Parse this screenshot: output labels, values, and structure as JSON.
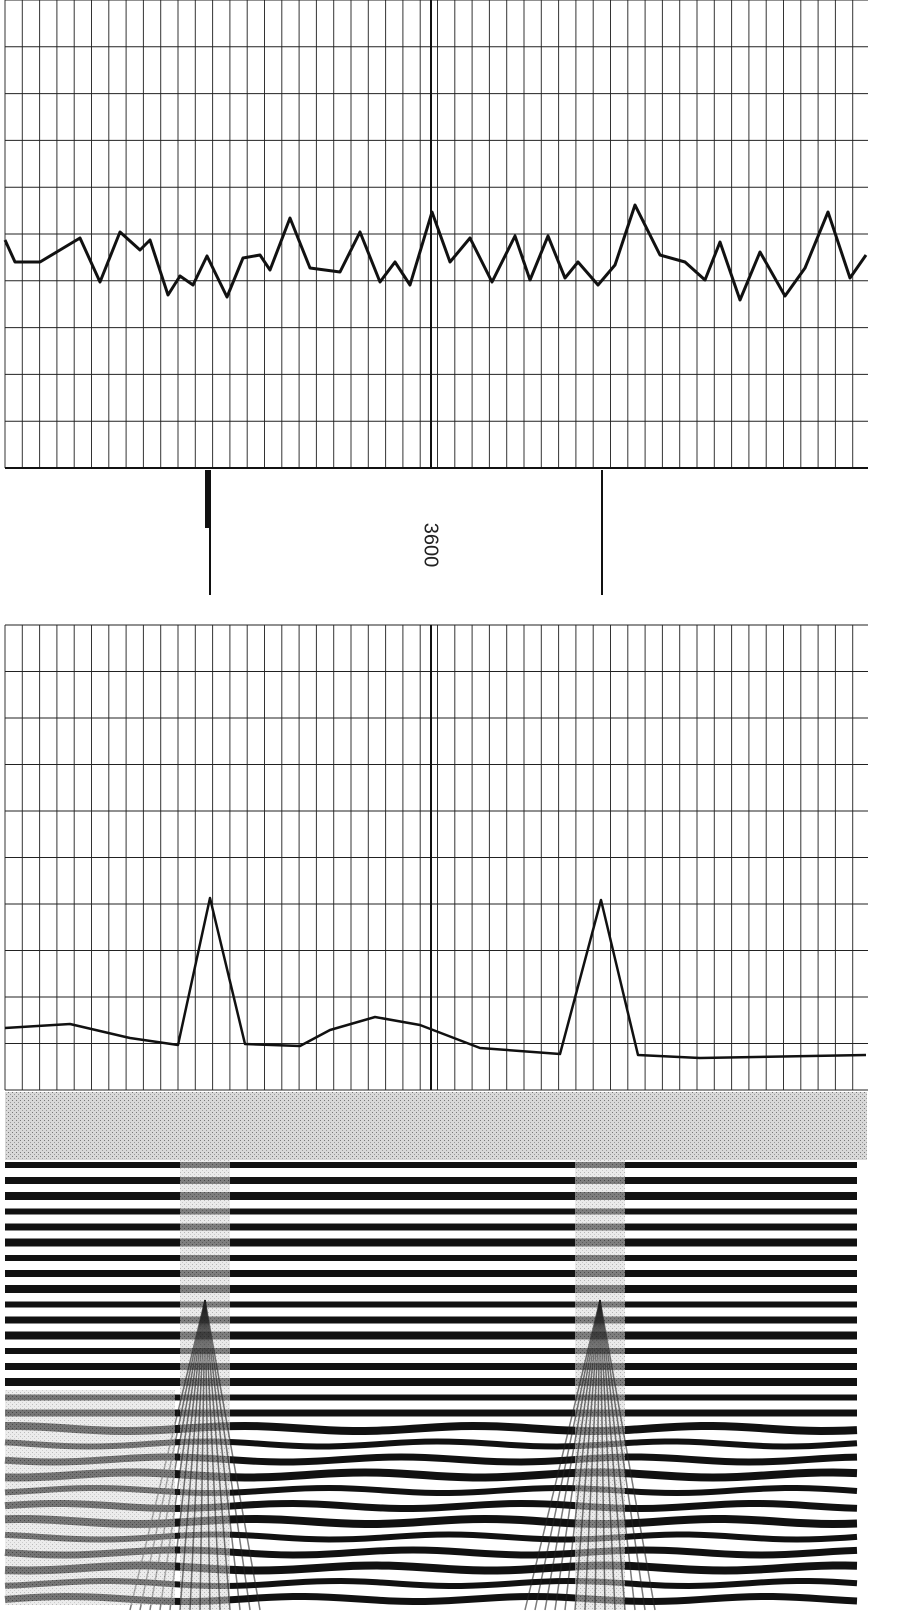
{
  "depth_label": "3600"
}
